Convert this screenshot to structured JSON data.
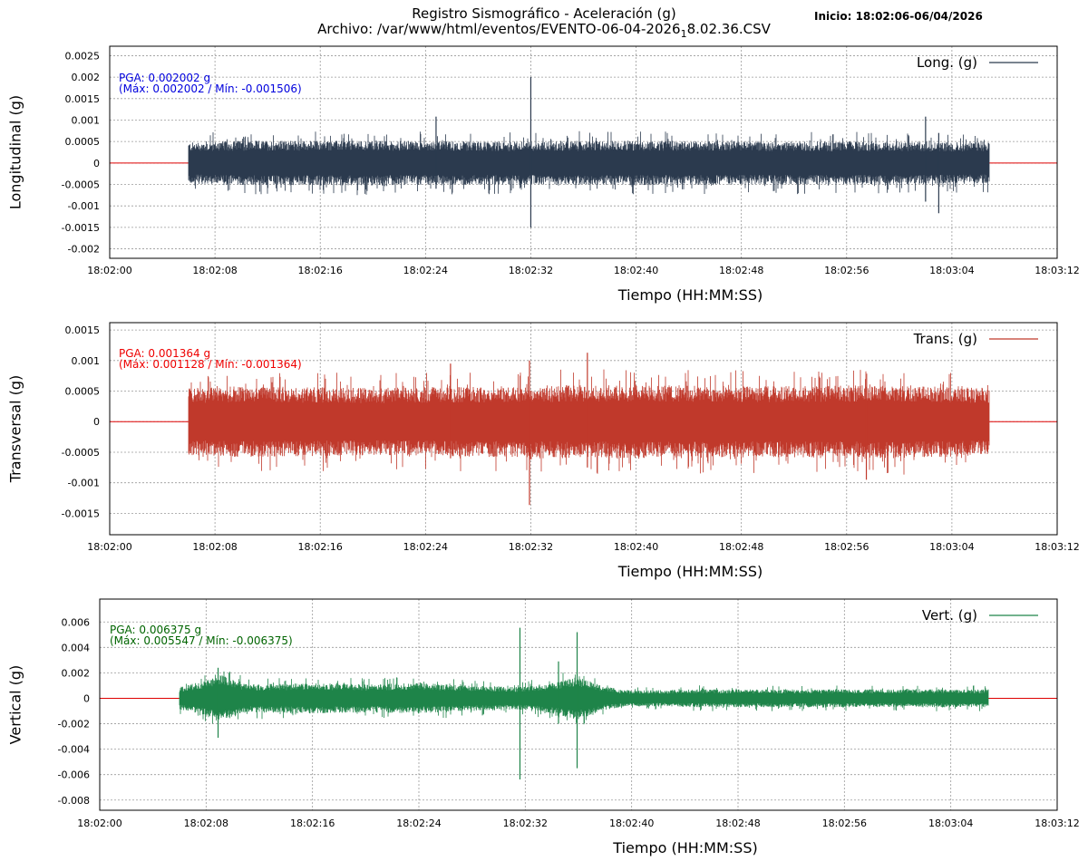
{
  "header": {
    "title": "Registro Sismográfico - Aceleración (g)",
    "file_prefix": "Archivo: /var/www/html/eventos/EVENTO-06-04-2026",
    "file_subscript": "1",
    "file_suffix": "8.02.36.CSV",
    "start_label": "Inicio: 18:02:06-06/04/2026"
  },
  "colors": {
    "longitudinal": "#2b3a4e",
    "transversal": "#c0392b",
    "vertical": "#1e8449",
    "baseline": "#dd0000",
    "grid": "#9a9a9a",
    "pga_longitudinal": "#0000dd",
    "pga_transversal": "#ee0000",
    "pga_vertical": "#006400"
  },
  "chart_data": [
    {
      "type": "line",
      "ylabel": "Longitudinal (g)",
      "xlabel": "Tiempo (HH:MM:SS)",
      "legend": "Long. (g)",
      "legend_position": "top-right",
      "grid": true,
      "x_ticks": [
        "18:02:00",
        "18:02:08",
        "18:02:16",
        "18:02:24",
        "18:02:32",
        "18:02:40",
        "18:02:48",
        "18:02:56",
        "18:03:04",
        "18:03:12"
      ],
      "xlim_seconds": [
        0,
        72
      ],
      "signal_span_seconds": [
        6,
        66.8
      ],
      "y_ticks": [
        "0.0025",
        "0.002",
        "0.0015",
        "0.001",
        "0.0005",
        "0",
        "-0.0005",
        "-0.001",
        "-0.0015",
        "-0.002"
      ],
      "ylim": [
        -0.00222,
        0.00272
      ],
      "pga_line1": "PGA: 0.002002 g",
      "pga_line2": "(Máx: 0.002002 / Mín: -0.001506)",
      "pga": 0.002002,
      "max": 0.002002,
      "min": -0.001506,
      "envelope_seconds": [
        6,
        10,
        20,
        30,
        40,
        50,
        60,
        66.8
      ],
      "envelope_amplitude": [
        0.00048,
        0.00052,
        0.00052,
        0.0005,
        0.00052,
        0.0005,
        0.0005,
        0.00048
      ],
      "spikes": [
        {
          "t": 32.0,
          "high": 0.002002,
          "low": -0.001506
        },
        {
          "t": 24.8,
          "high": 0.00108,
          "low": -0.0006
        },
        {
          "t": 62.0,
          "high": 0.00108,
          "low": -0.0009
        },
        {
          "t": 63.0,
          "high": 0.0007,
          "low": -0.00117
        }
      ]
    },
    {
      "type": "line",
      "ylabel": "Transversal (g)",
      "xlabel": "Tiempo (HH:MM:SS)",
      "legend": "Trans. (g)",
      "legend_position": "top-right",
      "grid": true,
      "x_ticks": [
        "18:02:00",
        "18:02:08",
        "18:02:16",
        "18:02:24",
        "18:02:32",
        "18:02:40",
        "18:02:48",
        "18:02:56",
        "18:03:04",
        "18:03:12"
      ],
      "xlim_seconds": [
        0,
        72
      ],
      "signal_span_seconds": [
        6,
        66.8
      ],
      "y_ticks": [
        "0.0015",
        "0.001",
        "0.0005",
        "0",
        "-0.0005",
        "-0.001",
        "-0.0015"
      ],
      "ylim": [
        -0.00185,
        0.00162
      ],
      "pga_line1": "PGA: 0.001364 g",
      "pga_line2": "(Máx: 0.001128 / Mín: -0.001364)",
      "pga": 0.001364,
      "max": 0.001128,
      "min": -0.001364,
      "envelope_seconds": [
        6,
        10,
        20,
        30,
        40,
        50,
        60,
        66.8
      ],
      "envelope_amplitude": [
        0.00055,
        0.00058,
        0.00055,
        0.00058,
        0.0006,
        0.00058,
        0.0006,
        0.00055
      ],
      "spikes": [
        {
          "t": 31.9,
          "high": 0.001,
          "low": -0.001364
        },
        {
          "t": 36.3,
          "high": 0.001128,
          "low": -0.00075
        },
        {
          "t": 25.9,
          "high": 0.00095,
          "low": -0.0006
        },
        {
          "t": 57.5,
          "high": 0.0005,
          "low": -0.00095
        }
      ]
    },
    {
      "type": "line",
      "ylabel": "Vertical (g)",
      "xlabel": "Tiempo (HH:MM:SS)",
      "legend": "Vert. (g)",
      "legend_position": "top-right",
      "grid": true,
      "x_ticks": [
        "18:02:00",
        "18:02:08",
        "18:02:16",
        "18:02:24",
        "18:02:32",
        "18:02:40",
        "18:02:48",
        "18:02:56",
        "18:03:04",
        "18:03:12"
      ],
      "xlim_seconds": [
        0,
        72
      ],
      "signal_span_seconds": [
        6,
        66.8
      ],
      "y_ticks": [
        "0.006",
        "0.004",
        "0.002",
        "0",
        "-0.002",
        "-0.004",
        "-0.006",
        "-0.008"
      ],
      "ylim": [
        -0.0088,
        0.0078
      ],
      "pga_line1": "PGA: 0.006375 g",
      "pga_line2": "(Máx: 0.005547 / Mín: -0.006375)",
      "pga": 0.006375,
      "max": 0.005547,
      "min": -0.006375,
      "envelope_seconds": [
        6,
        8,
        9,
        11,
        16,
        20,
        24,
        28,
        31.5,
        34,
        36,
        38,
        40,
        45,
        55,
        66.8
      ],
      "envelope_amplitude": [
        0.0009,
        0.0014,
        0.0019,
        0.0011,
        0.0012,
        0.0011,
        0.0012,
        0.001,
        0.0009,
        0.0012,
        0.0017,
        0.0009,
        0.0006,
        0.0007,
        0.0007,
        0.0007
      ],
      "spikes": [
        {
          "t": 31.6,
          "high": 0.005547,
          "low": -0.006375
        },
        {
          "t": 35.9,
          "high": 0.0052,
          "low": -0.0055
        },
        {
          "t": 8.9,
          "high": 0.0024,
          "low": -0.0031
        },
        {
          "t": 34.5,
          "high": 0.0029,
          "low": -0.002
        }
      ]
    }
  ]
}
